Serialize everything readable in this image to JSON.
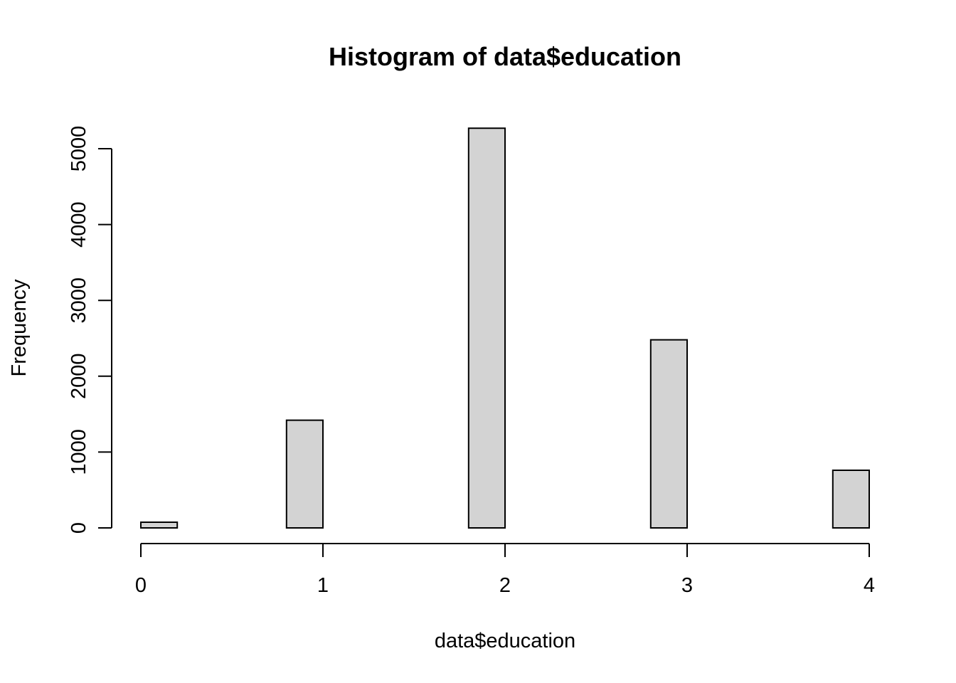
{
  "chart_data": {
    "type": "bar",
    "title": "Histogram of data$education",
    "xlabel": "data$education",
    "ylabel": "Frequency",
    "bin_width": 0.2,
    "bins": [
      {
        "x0": 0.0,
        "x1": 0.2,
        "value": 75
      },
      {
        "x0": 0.2,
        "x1": 0.4,
        "value": 0
      },
      {
        "x0": 0.4,
        "x1": 0.6,
        "value": 0
      },
      {
        "x0": 0.6,
        "x1": 0.8,
        "value": 0
      },
      {
        "x0": 0.8,
        "x1": 1.0,
        "value": 1420
      },
      {
        "x0": 1.0,
        "x1": 1.2,
        "value": 0
      },
      {
        "x0": 1.2,
        "x1": 1.4,
        "value": 0
      },
      {
        "x0": 1.4,
        "x1": 1.6,
        "value": 0
      },
      {
        "x0": 1.6,
        "x1": 1.8,
        "value": 0
      },
      {
        "x0": 1.8,
        "x1": 2.0,
        "value": 5270
      },
      {
        "x0": 2.0,
        "x1": 2.2,
        "value": 0
      },
      {
        "x0": 2.2,
        "x1": 2.4,
        "value": 0
      },
      {
        "x0": 2.4,
        "x1": 2.6,
        "value": 0
      },
      {
        "x0": 2.6,
        "x1": 2.8,
        "value": 0
      },
      {
        "x0": 2.8,
        "x1": 3.0,
        "value": 2480
      },
      {
        "x0": 3.0,
        "x1": 3.2,
        "value": 0
      },
      {
        "x0": 3.2,
        "x1": 3.4,
        "value": 0
      },
      {
        "x0": 3.4,
        "x1": 3.6,
        "value": 0
      },
      {
        "x0": 3.6,
        "x1": 3.8,
        "value": 0
      },
      {
        "x0": 3.8,
        "x1": 4.0,
        "value": 760
      }
    ],
    "xlim": [
      0,
      4
    ],
    "ylim": [
      0,
      5270
    ],
    "x_ticks": [
      0,
      1,
      2,
      3,
      4
    ],
    "x_tick_labels": [
      "0",
      "1",
      "2",
      "3",
      "4"
    ],
    "y_ticks": [
      0,
      1000,
      2000,
      3000,
      4000,
      5000
    ],
    "y_tick_labels": [
      "0",
      "1000",
      "2000",
      "3000",
      "4000",
      "5000"
    ],
    "grid": false,
    "legend": "none",
    "bar_fill": "#d3d3d3",
    "bar_stroke": "#000000"
  }
}
